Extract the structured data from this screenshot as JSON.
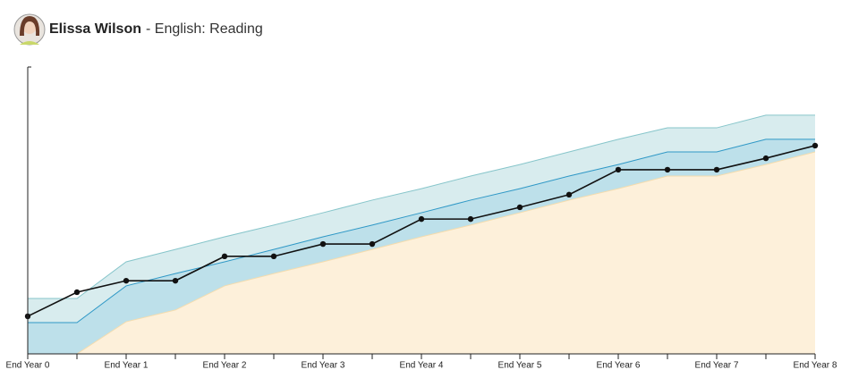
{
  "chart_data": {
    "type": "band-line",
    "title": "Elissa Wilson",
    "subtitle": "- English: Reading",
    "categories": [
      "End Year 0",
      null,
      "End Year 1",
      null,
      "End Year 2",
      null,
      "End Year 3",
      null,
      "End Year 4",
      null,
      "End Year 5",
      null,
      "End Year 6",
      null,
      "End Year 7",
      null,
      "End Year 8"
    ],
    "ylim": [
      0,
      100
    ],
    "bands": [
      {
        "color": "#d8ecee",
        "stroke": "#86c5ca",
        "values": [
          19.3,
          19.3,
          32.1,
          36.4,
          40.8,
          44.9,
          49.2,
          53.6,
          57.6,
          62.0,
          66.0,
          70.4,
          74.8,
          78.8,
          78.8,
          83.2,
          83.2
        ]
      },
      {
        "color": "#bde0ea",
        "stroke": "#2f98c6",
        "values": [
          10.9,
          10.9,
          23.7,
          28.0,
          32.1,
          36.4,
          40.8,
          44.9,
          49.2,
          53.6,
          57.6,
          62.0,
          66.0,
          70.4,
          70.4,
          74.8,
          74.8
        ]
      },
      {
        "color": "#fdf0da",
        "stroke": "#f4dcae",
        "values": [
          0,
          0,
          11.2,
          15.3,
          23.7,
          28.0,
          32.1,
          36.4,
          40.8,
          44.9,
          49.2,
          53.6,
          57.6,
          62.0,
          62.0,
          66.0,
          70.4
        ]
      }
    ],
    "series": [
      {
        "color": "#111111",
        "values": [
          13.1,
          21.5,
          25.5,
          25.5,
          34.0,
          34.0,
          38.3,
          38.3,
          47.0,
          47.0,
          51.1,
          55.5,
          64.2,
          64.2,
          64.2,
          68.2,
          72.6
        ]
      }
    ]
  }
}
